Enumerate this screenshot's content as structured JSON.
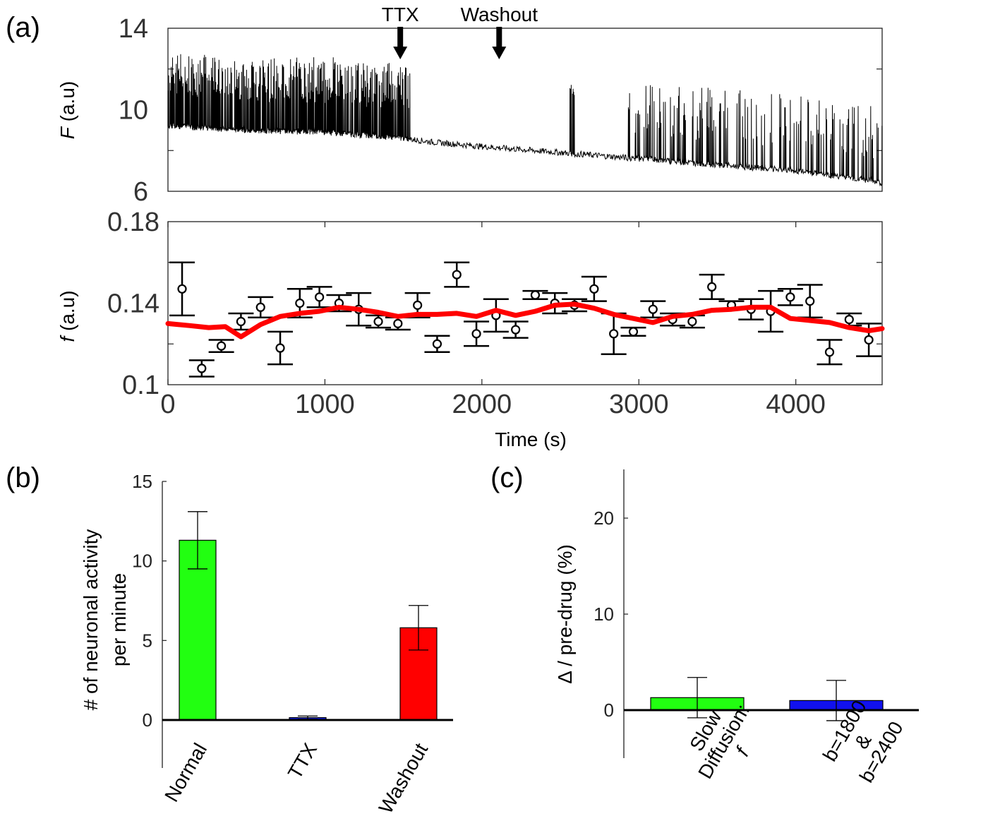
{
  "figure": {
    "panel_labels": [
      "(a)",
      "(b)",
      "(c)"
    ]
  },
  "colors": {
    "trace": "#000000",
    "fit_line": "#ff0000",
    "normal_bar": "#22ff11",
    "ttx_bar": "#1122ee",
    "washout_bar": "#ff0000",
    "slow_bar": "#22ff11",
    "b_bar": "#1111ee"
  },
  "chart_data": [
    {
      "id": "a-top",
      "type": "line",
      "title": "",
      "xlabel": "",
      "ylabel_italic": "F",
      "ylabel_rest": " (a.u)",
      "xlim": [
        0,
        4550
      ],
      "ylim": [
        6,
        14
      ],
      "yticks": [
        6,
        10,
        14
      ],
      "ytick_labels": [
        "6",
        "10",
        "14"
      ],
      "annotations": [
        {
          "label": "TTX",
          "x": 1480
        },
        {
          "label": "Washout",
          "x": 2110
        }
      ],
      "baseline": {
        "x": [
          0,
          500,
          1000,
          1500,
          1700,
          2000,
          2500,
          3000,
          3500,
          4000,
          4500,
          4550
        ],
        "y": [
          9.2,
          9.0,
          8.9,
          8.6,
          8.4,
          8.2,
          7.9,
          7.6,
          7.3,
          7.0,
          6.5,
          6.4
        ]
      },
      "spike_bursts": [
        {
          "start": 0,
          "end": 1540,
          "amplitude": [
            1.5,
            3.6
          ]
        },
        {
          "start": 2560,
          "end": 2600,
          "amplitude": [
            2.8,
            3.4
          ]
        },
        {
          "start": 2920,
          "end": 4550,
          "amplitude": [
            1.2,
            3.7
          ]
        }
      ]
    },
    {
      "id": "a-bottom",
      "type": "scatter",
      "xlabel": "Time (s)",
      "ylabel_italic": "f",
      "ylabel_rest": " (a.u)",
      "xlim": [
        0,
        4550
      ],
      "ylim": [
        0.1,
        0.18
      ],
      "xticks": [
        0,
        1000,
        2000,
        3000,
        4000
      ],
      "xtick_labels": [
        "0",
        "1000",
        "2000",
        "3000",
        "4000"
      ],
      "yticks": [
        0.1,
        0.14,
        0.18
      ],
      "ytick_labels": [
        "0.1",
        "0.14",
        "0.18"
      ],
      "points": [
        {
          "x": 90,
          "y": 0.147,
          "err": 0.013
        },
        {
          "x": 215,
          "y": 0.108,
          "err": 0.004
        },
        {
          "x": 340,
          "y": 0.119,
          "err": 0.003
        },
        {
          "x": 465,
          "y": 0.131,
          "err": 0.004
        },
        {
          "x": 590,
          "y": 0.138,
          "err": 0.005
        },
        {
          "x": 715,
          "y": 0.118,
          "err": 0.008
        },
        {
          "x": 840,
          "y": 0.14,
          "err": 0.007
        },
        {
          "x": 965,
          "y": 0.143,
          "err": 0.005
        },
        {
          "x": 1090,
          "y": 0.14,
          "err": 0.004
        },
        {
          "x": 1215,
          "y": 0.137,
          "err": 0.008
        },
        {
          "x": 1340,
          "y": 0.131,
          "err": 0.003
        },
        {
          "x": 1465,
          "y": 0.13,
          "err": 0.003
        },
        {
          "x": 1590,
          "y": 0.139,
          "err": 0.006
        },
        {
          "x": 1715,
          "y": 0.12,
          "err": 0.004
        },
        {
          "x": 1840,
          "y": 0.154,
          "err": 0.006
        },
        {
          "x": 1965,
          "y": 0.125,
          "err": 0.006
        },
        {
          "x": 2090,
          "y": 0.134,
          "err": 0.008
        },
        {
          "x": 2215,
          "y": 0.127,
          "err": 0.004
        },
        {
          "x": 2340,
          "y": 0.144,
          "err": 0.002
        },
        {
          "x": 2465,
          "y": 0.14,
          "err": 0.005
        },
        {
          "x": 2590,
          "y": 0.139,
          "err": 0.003
        },
        {
          "x": 2715,
          "y": 0.147,
          "err": 0.006
        },
        {
          "x": 2840,
          "y": 0.125,
          "err": 0.01
        },
        {
          "x": 2965,
          "y": 0.126,
          "err": 0.002
        },
        {
          "x": 3090,
          "y": 0.137,
          "err": 0.004
        },
        {
          "x": 3215,
          "y": 0.132,
          "err": 0.003
        },
        {
          "x": 3340,
          "y": 0.131,
          "err": 0.003
        },
        {
          "x": 3465,
          "y": 0.148,
          "err": 0.006
        },
        {
          "x": 3590,
          "y": 0.139,
          "err": 0.002
        },
        {
          "x": 3715,
          "y": 0.137,
          "err": 0.005
        },
        {
          "x": 3840,
          "y": 0.136,
          "err": 0.01
        },
        {
          "x": 3965,
          "y": 0.143,
          "err": 0.004
        },
        {
          "x": 4090,
          "y": 0.141,
          "err": 0.008
        },
        {
          "x": 4215,
          "y": 0.116,
          "err": 0.006
        },
        {
          "x": 4340,
          "y": 0.132,
          "err": 0.003
        },
        {
          "x": 4465,
          "y": 0.122,
          "err": 0.008
        }
      ],
      "fit_line": {
        "x": [
          0,
          140,
          260,
          365,
          465,
          590,
          715,
          840,
          965,
          1090,
          1215,
          1340,
          1465,
          1590,
          1715,
          1840,
          1965,
          2090,
          2215,
          2340,
          2465,
          2590,
          2715,
          2840,
          2965,
          3090,
          3215,
          3340,
          3465,
          3590,
          3715,
          3840,
          3965,
          4090,
          4215,
          4340,
          4465,
          4550
        ],
        "y": [
          0.13,
          0.129,
          0.128,
          0.1285,
          0.1235,
          0.1295,
          0.1335,
          0.135,
          0.136,
          0.138,
          0.137,
          0.1355,
          0.1335,
          0.1345,
          0.1345,
          0.135,
          0.1335,
          0.1365,
          0.134,
          0.136,
          0.139,
          0.1395,
          0.1375,
          0.1345,
          0.1325,
          0.1305,
          0.1335,
          0.1345,
          0.1365,
          0.137,
          0.138,
          0.138,
          0.1325,
          0.1315,
          0.1305,
          0.128,
          0.1265,
          0.1275
        ]
      }
    },
    {
      "id": "b",
      "type": "bar",
      "ylabel_line1": "# of neuronal activity",
      "ylabel_line2": "per minute",
      "ylim": [
        -2.8,
        15
      ],
      "yticks": [
        0,
        5,
        10,
        15
      ],
      "ytick_labels": [
        "0",
        "5",
        "10",
        "15"
      ],
      "categories": [
        "Normal",
        "TTX",
        "Washout"
      ],
      "values": [
        11.3,
        0.15,
        5.8
      ],
      "errors": [
        1.8,
        0.1,
        1.4
      ]
    },
    {
      "id": "c",
      "type": "bar",
      "ylabel": "Δ / pre-drug (%)",
      "ylim": [
        -5,
        25
      ],
      "yticks": [
        0,
        10,
        20
      ],
      "ytick_labels": [
        "0",
        "10",
        "20"
      ],
      "categories": [
        {
          "lines": [
            "Slow",
            "Diffusion:",
            "f"
          ],
          "italic_last": true
        },
        {
          "lines": [
            "b=1800",
            "&",
            "b=2400"
          ],
          "italic_last": false
        }
      ],
      "values": [
        1.3,
        1.0
      ],
      "errors": [
        2.1,
        2.1
      ]
    }
  ]
}
